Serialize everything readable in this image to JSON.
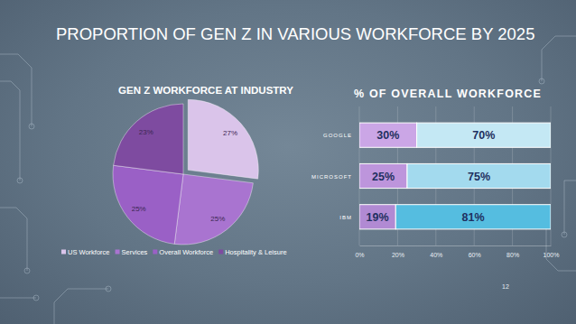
{
  "title": "PROPORTION OF GEN Z IN VARIOUS WORKFORCE BY 2025",
  "page": 12,
  "chart_data": [
    {
      "type": "pie",
      "title": "GEN Z WORKFORCE AT INDUSTRY",
      "categories": [
        "US Workforce",
        "Services",
        "Overall Workforce",
        "Hospitality & Leisure"
      ],
      "values": [
        27,
        25,
        25,
        23
      ],
      "value_labels": [
        "27%",
        "25%",
        "25%",
        "23%"
      ],
      "colors": [
        "#dac4ea",
        "#a974d0",
        "#9a60c6",
        "#7e4ba0"
      ],
      "data_labels": true,
      "legend": "bottom"
    },
    {
      "type": "bar",
      "title": "% OF OVERALL WORKFORCE",
      "orientation": "horizontal",
      "stacked": true,
      "categories": [
        "GOOGLE",
        "MICROSOFT",
        "IBM"
      ],
      "series": [
        {
          "values": [
            30,
            25,
            19
          ],
          "value_labels": [
            "30%",
            "25%",
            "19%"
          ],
          "colors": [
            "#cba6e6",
            "#bd95dc",
            "#b18ad3"
          ]
        },
        {
          "values": [
            70,
            75,
            81
          ],
          "value_labels": [
            "70%",
            "75%",
            "81%"
          ],
          "colors": [
            "#c4e8f4",
            "#a3daee",
            "#55bde0"
          ]
        }
      ],
      "xlim": [
        0,
        100
      ],
      "xticks": [
        {
          "value": 0,
          "label": "0%"
        },
        {
          "value": 20,
          "label": "20%"
        },
        {
          "value": 40,
          "label": "40%"
        },
        {
          "value": 60,
          "label": "60%"
        },
        {
          "value": 80,
          "label": "80%"
        },
        {
          "value": 100,
          "label": "100%"
        }
      ],
      "grid": true,
      "data_labels": true
    }
  ]
}
